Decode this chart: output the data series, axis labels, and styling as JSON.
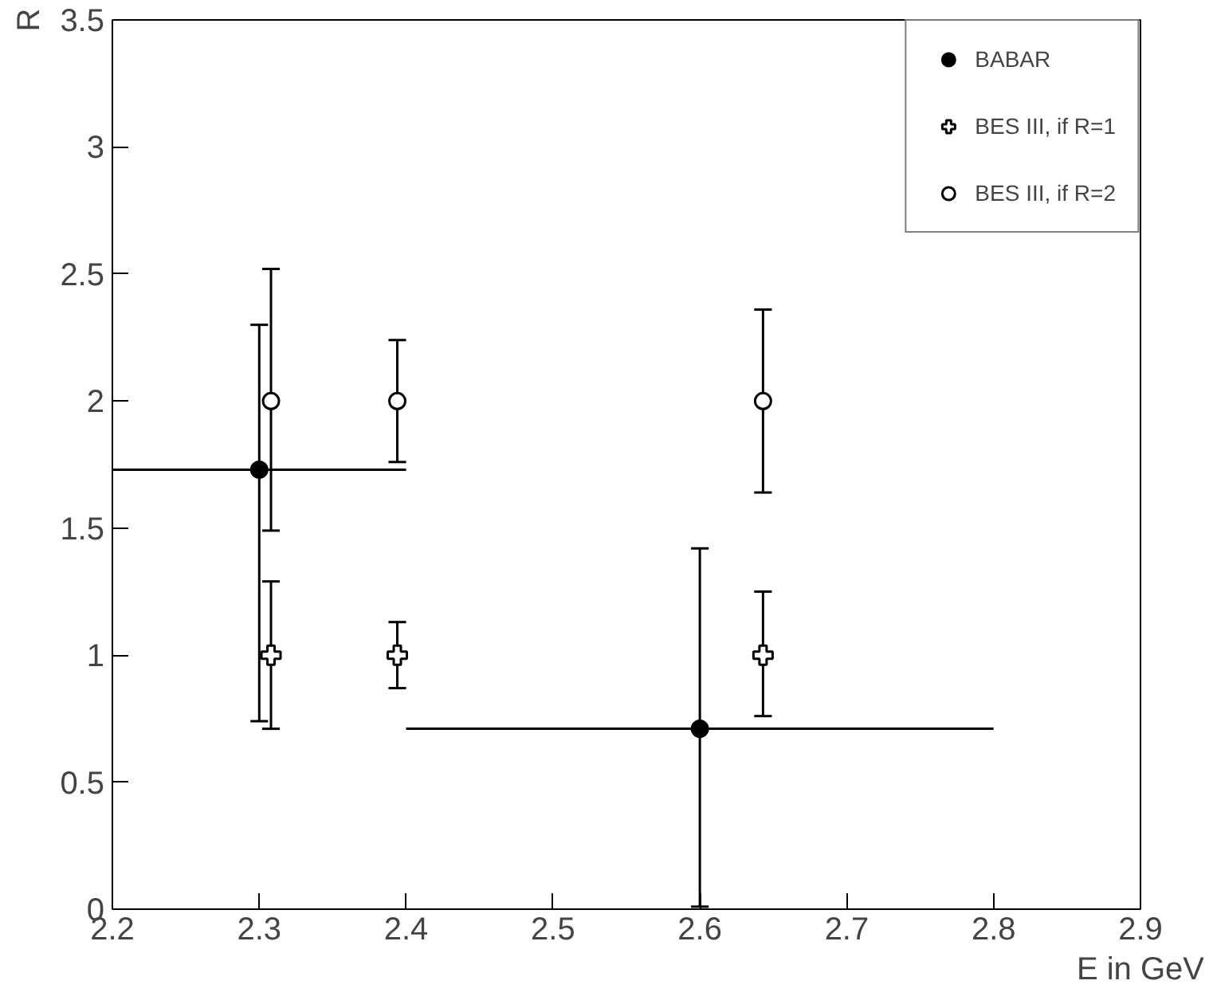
{
  "chart_data": {
    "type": "scatter",
    "xlabel": "E in GeV",
    "ylabel": "R",
    "xlim": [
      2.2,
      2.9
    ],
    "xticks": [
      2.2,
      2.3,
      2.4,
      2.5,
      2.6,
      2.7,
      2.8,
      2.9
    ],
    "ylim": [
      0,
      3.5
    ],
    "yticks": [
      0,
      0.5,
      1,
      1.5,
      2,
      2.5,
      3,
      3.5
    ],
    "grid": false,
    "legend": "top right",
    "series": [
      {
        "name": "BABAR",
        "color": "#000000",
        "marker": "circle",
        "x": [
          2.3,
          2.6
        ],
        "values": [
          1.73,
          0.71
        ],
        "errors": [
          [
            0.74,
            2.3
          ],
          [
            0.01,
            1.42
          ]
        ],
        "xerrors": [
          [
            2.2,
            2.4
          ],
          [
            2.4,
            2.8
          ]
        ]
      },
      {
        "name": "BES III, if R=1",
        "color": "#ffffff",
        "marker": "cross",
        "x": [
          2.308,
          2.394,
          2.643
        ],
        "values": [
          1,
          1,
          1
        ],
        "errors": [
          [
            0.71,
            1.29
          ],
          [
            0.87,
            1.13
          ],
          [
            0.76,
            1.25
          ]
        ]
      },
      {
        "name": "BES III, if R=2",
        "color": "#ffffff",
        "marker": "circle",
        "x": [
          2.308,
          2.394,
          2.643
        ],
        "values": [
          2,
          2,
          2
        ],
        "errors": [
          [
            1.49,
            2.52
          ],
          [
            1.76,
            2.24
          ],
          [
            1.64,
            2.36
          ]
        ]
      }
    ]
  }
}
